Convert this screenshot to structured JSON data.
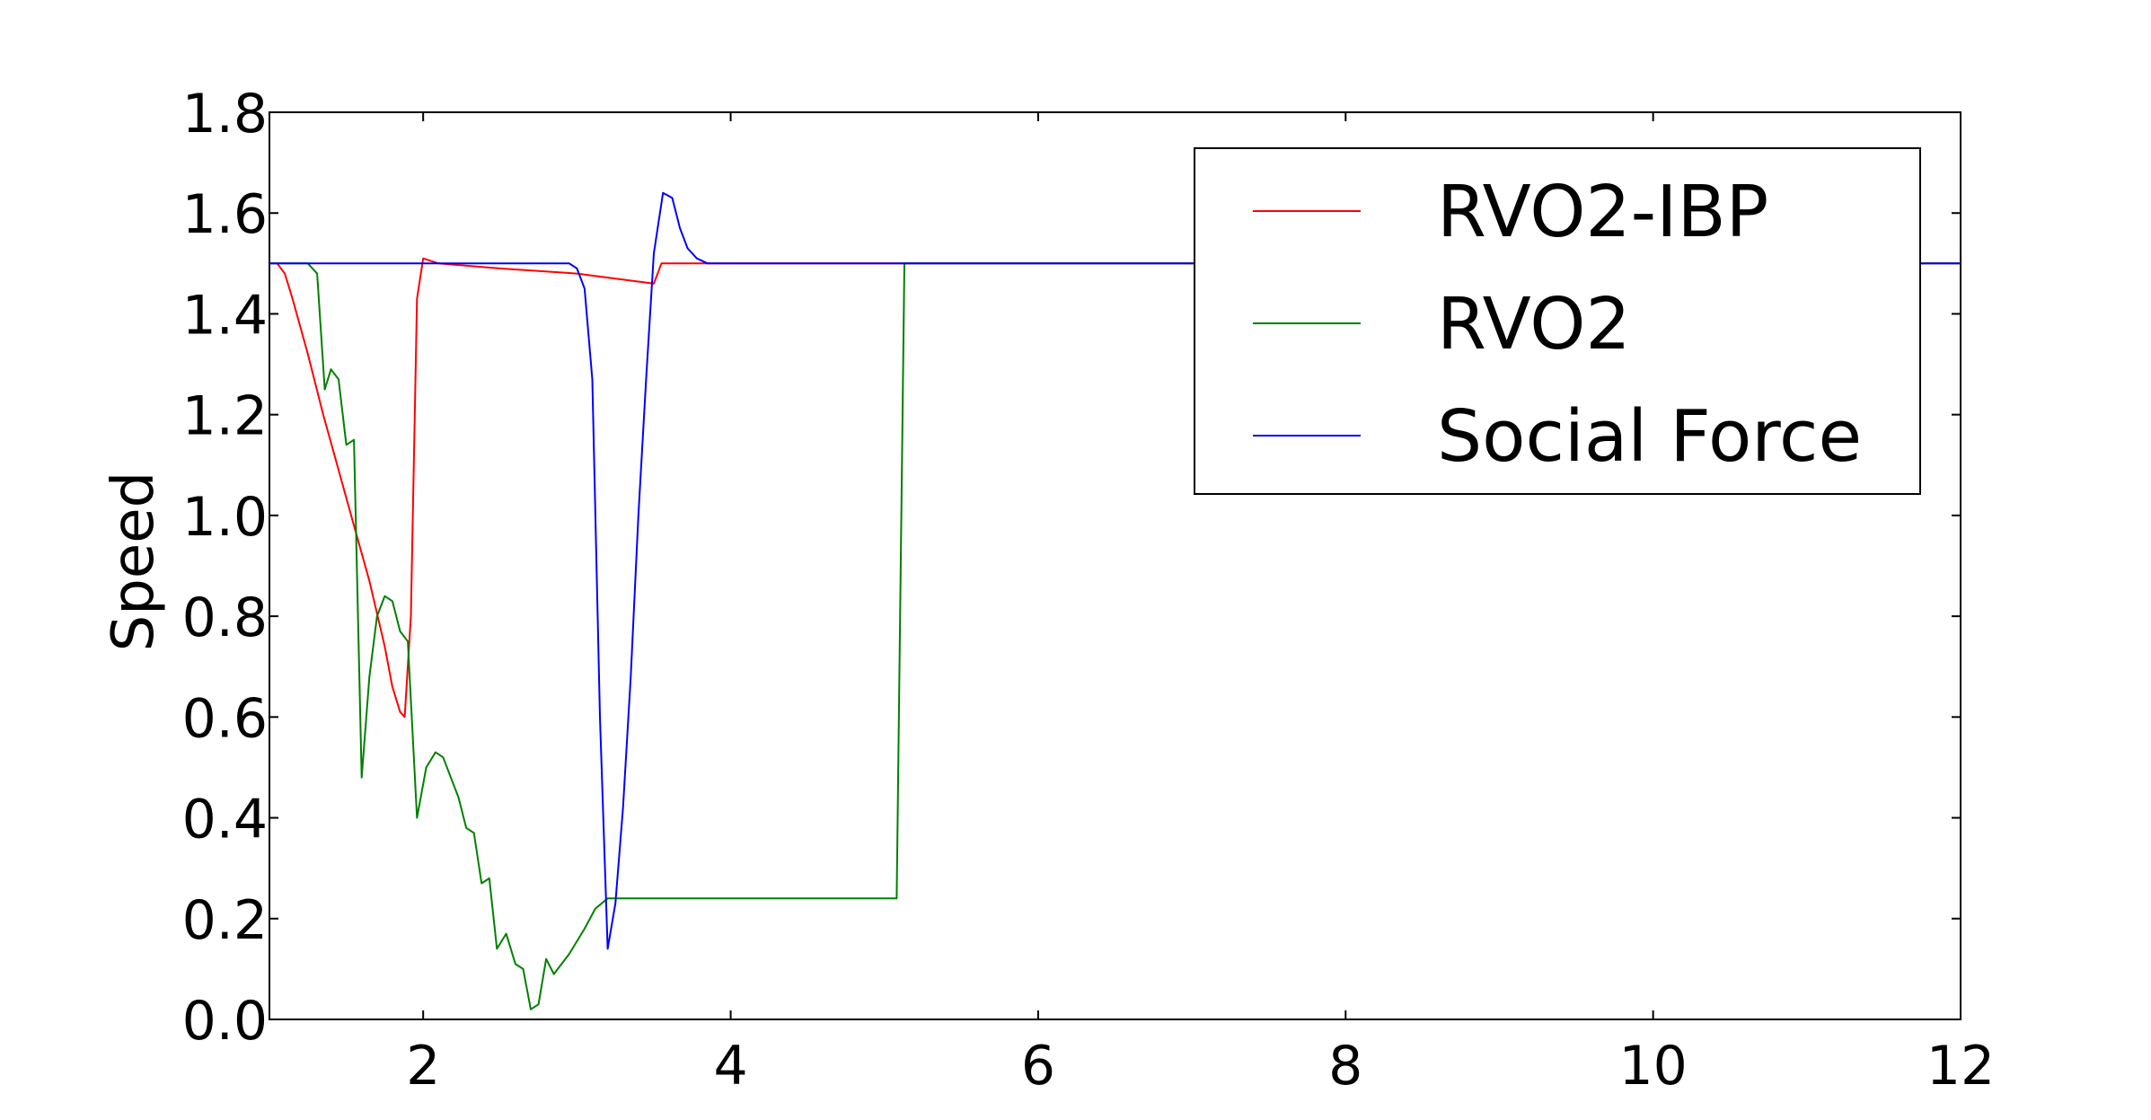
{
  "chart_data": {
    "type": "line",
    "title": "",
    "xlabel": "",
    "ylabel": "Speed",
    "xlim": [
      1,
      12
    ],
    "ylim": [
      0.0,
      1.8
    ],
    "xticks": [
      2,
      4,
      6,
      8,
      10,
      12
    ],
    "xtick_labels": [
      "2",
      "4",
      "6",
      "8",
      "10",
      "12"
    ],
    "yticks": [
      0.0,
      0.2,
      0.4,
      0.6,
      0.8,
      1.0,
      1.2,
      1.4,
      1.6,
      1.8
    ],
    "ytick_labels": [
      "0.0",
      "0.2",
      "0.4",
      "0.6",
      "0.8",
      "1.0",
      "1.2",
      "1.4",
      "1.6",
      "1.8"
    ],
    "grid": false,
    "legend_position": "top-right",
    "series": [
      {
        "name": "RVO2-IBP",
        "color": "#ff0000",
        "points": [
          [
            1.0,
            1.5
          ],
          [
            1.05,
            1.5
          ],
          [
            1.1,
            1.48
          ],
          [
            1.15,
            1.43
          ],
          [
            1.25,
            1.32
          ],
          [
            1.35,
            1.2
          ],
          [
            1.45,
            1.09
          ],
          [
            1.55,
            0.98
          ],
          [
            1.65,
            0.87
          ],
          [
            1.75,
            0.74
          ],
          [
            1.8,
            0.66
          ],
          [
            1.85,
            0.61
          ],
          [
            1.88,
            0.6
          ],
          [
            1.92,
            0.8
          ],
          [
            1.96,
            1.43
          ],
          [
            2.0,
            1.51
          ],
          [
            2.1,
            1.5
          ],
          [
            2.5,
            1.49
          ],
          [
            3.0,
            1.48
          ],
          [
            3.5,
            1.46
          ],
          [
            3.55,
            1.5
          ],
          [
            4.0,
            1.5
          ],
          [
            12.0,
            1.5
          ]
        ]
      },
      {
        "name": "RVO2",
        "color": "#008000",
        "points": [
          [
            1.0,
            1.5
          ],
          [
            1.25,
            1.5
          ],
          [
            1.31,
            1.48
          ],
          [
            1.36,
            1.25
          ],
          [
            1.4,
            1.29
          ],
          [
            1.45,
            1.27
          ],
          [
            1.5,
            1.14
          ],
          [
            1.55,
            1.15
          ],
          [
            1.6,
            0.48
          ],
          [
            1.65,
            0.68
          ],
          [
            1.7,
            0.8
          ],
          [
            1.75,
            0.84
          ],
          [
            1.8,
            0.83
          ],
          [
            1.85,
            0.77
          ],
          [
            1.9,
            0.75
          ],
          [
            1.96,
            0.4
          ],
          [
            2.02,
            0.5
          ],
          [
            2.08,
            0.53
          ],
          [
            2.13,
            0.52
          ],
          [
            2.18,
            0.48
          ],
          [
            2.23,
            0.44
          ],
          [
            2.28,
            0.38
          ],
          [
            2.33,
            0.37
          ],
          [
            2.38,
            0.27
          ],
          [
            2.43,
            0.28
          ],
          [
            2.48,
            0.14
          ],
          [
            2.54,
            0.17
          ],
          [
            2.6,
            0.11
          ],
          [
            2.65,
            0.1
          ],
          [
            2.7,
            0.02
          ],
          [
            2.75,
            0.03
          ],
          [
            2.8,
            0.12
          ],
          [
            2.85,
            0.09
          ],
          [
            2.95,
            0.13
          ],
          [
            3.05,
            0.18
          ],
          [
            3.12,
            0.22
          ],
          [
            3.2,
            0.24
          ],
          [
            3.6,
            0.24
          ],
          [
            4.0,
            0.24
          ],
          [
            4.5,
            0.24
          ],
          [
            5.08,
            0.24
          ],
          [
            5.13,
            1.5
          ],
          [
            12.0,
            1.5
          ]
        ]
      },
      {
        "name": "Social Force",
        "color": "#0000ff",
        "points": [
          [
            1.0,
            1.5
          ],
          [
            2.9,
            1.5
          ],
          [
            2.95,
            1.5
          ],
          [
            3.0,
            1.49
          ],
          [
            3.05,
            1.45
          ],
          [
            3.1,
            1.27
          ],
          [
            3.15,
            0.6
          ],
          [
            3.2,
            0.14
          ],
          [
            3.25,
            0.23
          ],
          [
            3.3,
            0.42
          ],
          [
            3.35,
            0.68
          ],
          [
            3.4,
            1.0
          ],
          [
            3.45,
            1.27
          ],
          [
            3.5,
            1.52
          ],
          [
            3.56,
            1.64
          ],
          [
            3.62,
            1.63
          ],
          [
            3.67,
            1.57
          ],
          [
            3.72,
            1.53
          ],
          [
            3.78,
            1.51
          ],
          [
            3.85,
            1.5
          ],
          [
            4.0,
            1.5
          ],
          [
            12.0,
            1.5
          ]
        ]
      }
    ]
  }
}
